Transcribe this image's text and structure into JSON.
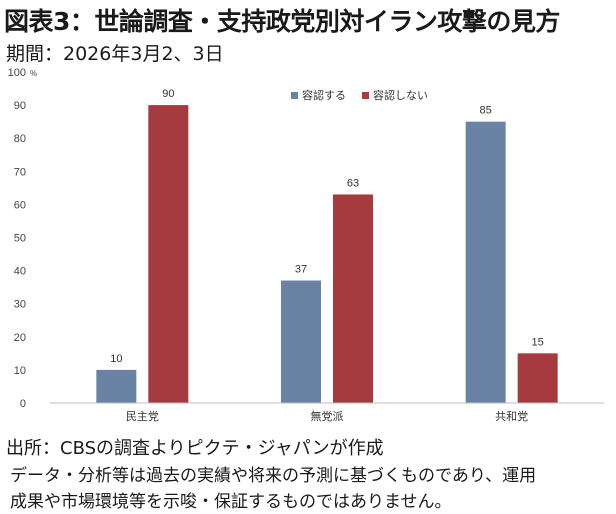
{
  "header": {
    "title": "図表3：世論調査・支持政党別対イラン攻撃の見方",
    "period": "期間：2026年3月2、3日"
  },
  "chart_data": {
    "type": "bar",
    "categories": [
      "民主党",
      "無党派",
      "共和党"
    ],
    "series": [
      {
        "name": "容認する",
        "values": [
          10,
          37,
          85
        ],
        "color": "#6a82a4"
      },
      {
        "name": "容認しない",
        "values": [
          90,
          63,
          15
        ],
        "color": "#a53a3f"
      }
    ],
    "ylim": [
      0,
      100
    ],
    "yticks": [
      0,
      10,
      20,
      30,
      40,
      50,
      60,
      70,
      80,
      90,
      100
    ],
    "unit": "%",
    "legend": "top-center",
    "grid": false
  },
  "footer": {
    "source": "出所：CBSの調査よりピクテ・ジャパンが作成",
    "disclaimer_1": "データ・分析等は過去の実績や将来の予測に基づくものであり、運用",
    "disclaimer_2": "成果や市場環境等を示唆・保証するものではありません。"
  }
}
